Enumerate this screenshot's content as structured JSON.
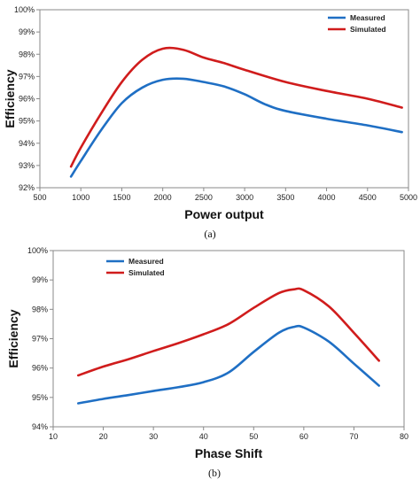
{
  "chart_data": [
    {
      "type": "line",
      "caption": "(a)",
      "xlabel": "Power output",
      "ylabel": "Efficiency",
      "xlim": [
        500,
        5000
      ],
      "ylim": [
        92,
        100
      ],
      "xticks": [
        500,
        1000,
        1500,
        2000,
        2500,
        3000,
        3500,
        4000,
        4500,
        5000
      ],
      "yticks": [
        92,
        93,
        94,
        95,
        96,
        97,
        98,
        99,
        100
      ],
      "ytick_suffix": "%",
      "grid": false,
      "legend_position": "top-right",
      "series": [
        {
          "name": "Measured",
          "color": "#1f6fc4",
          "x": [
            880,
            1000,
            1250,
            1500,
            1750,
            2000,
            2250,
            2500,
            2750,
            3000,
            3250,
            3500,
            4000,
            4500,
            4920
          ],
          "y": [
            92.5,
            93.2,
            94.6,
            95.8,
            96.5,
            96.85,
            96.9,
            96.75,
            96.55,
            96.2,
            95.75,
            95.45,
            95.1,
            94.8,
            94.5
          ]
        },
        {
          "name": "Simulated",
          "color": "#d01c1c",
          "x": [
            880,
            1000,
            1250,
            1500,
            1750,
            2000,
            2250,
            2500,
            2750,
            3000,
            3500,
            4000,
            4500,
            4920
          ],
          "y": [
            92.95,
            93.8,
            95.35,
            96.75,
            97.75,
            98.25,
            98.2,
            97.85,
            97.6,
            97.3,
            96.75,
            96.35,
            96.0,
            95.6
          ]
        }
      ]
    },
    {
      "type": "line",
      "caption": "(b)",
      "xlabel": "Phase Shift",
      "ylabel": "Efficiency",
      "xlim": [
        10,
        80
      ],
      "ylim": [
        94,
        100
      ],
      "xticks": [
        10,
        20,
        30,
        40,
        50,
        60,
        70,
        80
      ],
      "yticks": [
        94,
        95,
        96,
        97,
        98,
        99,
        100
      ],
      "ytick_suffix": "%",
      "grid": false,
      "legend_position": "top-left",
      "series": [
        {
          "name": "Measured",
          "color": "#1f6fc4",
          "x": [
            15,
            20,
            25,
            30,
            35,
            40,
            45,
            50,
            55,
            58,
            60,
            65,
            70,
            75
          ],
          "y": [
            94.8,
            94.95,
            95.08,
            95.22,
            95.35,
            95.52,
            95.85,
            96.55,
            97.2,
            97.4,
            97.38,
            96.9,
            96.15,
            95.4
          ]
        },
        {
          "name": "Simulated",
          "color": "#d01c1c",
          "x": [
            15,
            20,
            25,
            30,
            35,
            40,
            45,
            50,
            55,
            58,
            60,
            65,
            70,
            75
          ],
          "y": [
            95.75,
            96.05,
            96.3,
            96.58,
            96.85,
            97.15,
            97.5,
            98.05,
            98.55,
            98.68,
            98.65,
            98.1,
            97.2,
            96.25
          ]
        }
      ]
    }
  ]
}
